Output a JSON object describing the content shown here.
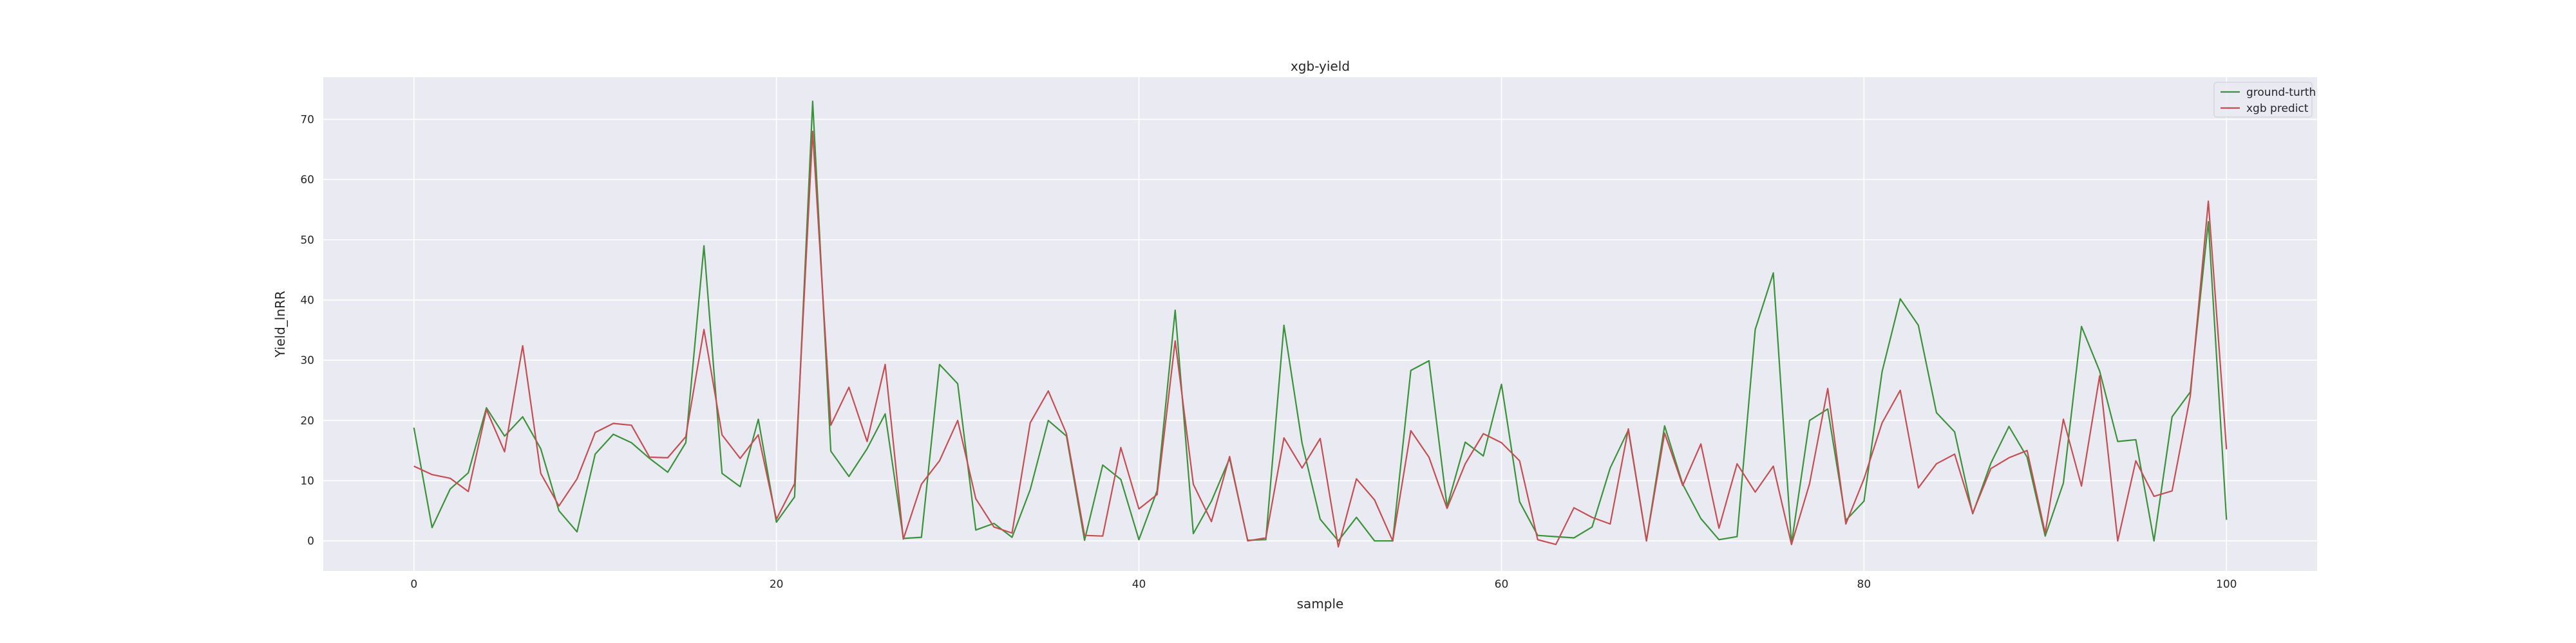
{
  "chart_data": {
    "type": "line",
    "title": "xgb-yield",
    "xlabel": "sample",
    "ylabel": "Yield_lnRR",
    "xlim": [
      -5,
      105
    ],
    "ylim": [
      -5,
      77
    ],
    "xticks": [
      0,
      20,
      40,
      60,
      80,
      100
    ],
    "yticks": [
      0,
      10,
      20,
      30,
      40,
      50,
      60,
      70
    ],
    "grid": true,
    "legend_position": "top-right",
    "x": [
      0,
      1,
      2,
      3,
      4,
      5,
      6,
      7,
      8,
      9,
      10,
      11,
      12,
      13,
      14,
      15,
      16,
      17,
      18,
      19,
      20,
      21,
      22,
      23,
      24,
      25,
      26,
      27,
      28,
      29,
      30,
      31,
      32,
      33,
      34,
      35,
      36,
      37,
      38,
      39,
      40,
      41,
      42,
      43,
      44,
      45,
      46,
      47,
      48,
      49,
      50,
      51,
      52,
      53,
      54,
      55,
      56,
      57,
      58,
      59,
      60,
      61,
      62,
      63,
      64,
      65,
      66,
      67,
      68,
      69,
      70,
      71,
      72,
      73,
      74,
      75,
      76,
      77,
      78,
      79,
      80,
      81,
      82,
      83,
      84,
      85,
      86,
      87,
      88,
      89,
      90,
      91,
      92,
      93,
      94,
      95,
      96,
      97,
      98,
      99,
      100
    ],
    "series": [
      {
        "name": "ground-turth",
        "color": "#3a923a",
        "values": [
          18.8,
          2.2,
          8.6,
          11.3,
          22.1,
          17.4,
          20.6,
          15.3,
          5.0,
          1.5,
          14.4,
          17.7,
          16.3,
          13.7,
          11.4,
          16.3,
          49.0,
          11.2,
          9.0,
          20.2,
          3.1,
          7.3,
          73.0,
          14.9,
          10.7,
          15.3,
          21.1,
          0.4,
          0.6,
          29.3,
          26.1,
          1.8,
          2.9,
          0.6,
          8.5,
          20.0,
          17.4,
          0.1,
          12.6,
          10.2,
          0.2,
          8.3,
          38.3,
          1.2,
          6.6,
          13.7,
          0.1,
          0.2,
          35.8,
          16.2,
          3.6,
          0.0,
          3.9,
          0.0,
          0.0,
          28.3,
          29.9,
          5.7,
          16.4,
          14.1,
          26.0,
          6.5,
          0.9,
          0.7,
          0.5,
          2.3,
          12.1,
          18.4,
          0.0,
          19.1,
          9.4,
          3.7,
          0.2,
          0.7,
          35.1,
          44.5,
          -0.5,
          20.0,
          21.9,
          3.4,
          6.6,
          28.1,
          40.2,
          35.8,
          21.3,
          18.1,
          4.5,
          12.9,
          19.0,
          13.9,
          0.8,
          9.6,
          35.6,
          28.2,
          16.5,
          16.8,
          0.0,
          20.6,
          24.7,
          53.0,
          3.5
        ]
      },
      {
        "name": "xgb predict",
        "color": "#c44e52",
        "values": [
          12.4,
          11.0,
          10.4,
          8.2,
          21.8,
          14.8,
          32.4,
          11.2,
          5.8,
          10.3,
          18.0,
          19.5,
          19.2,
          13.9,
          13.8,
          17.3,
          35.1,
          17.6,
          13.7,
          17.6,
          3.6,
          9.5,
          68.0,
          19.2,
          25.5,
          16.5,
          29.3,
          0.3,
          9.4,
          13.3,
          20.0,
          7.0,
          2.3,
          1.3,
          19.6,
          24.9,
          17.8,
          0.9,
          0.8,
          15.5,
          5.3,
          7.7,
          33.2,
          9.4,
          3.2,
          14.0,
          0.0,
          0.5,
          17.1,
          12.1,
          17.0,
          -1.0,
          10.3,
          6.8,
          0.0,
          18.3,
          13.9,
          5.4,
          12.8,
          17.8,
          16.3,
          13.3,
          0.2,
          -0.6,
          5.5,
          3.9,
          2.8,
          18.6,
          0.0,
          17.9,
          9.2,
          16.1,
          2.1,
          12.8,
          8.1,
          12.4,
          -0.6,
          9.5,
          25.3,
          2.8,
          10.3,
          19.6,
          25.0,
          8.8,
          12.8,
          14.4,
          4.6,
          12.0,
          13.8,
          15.0,
          1.3,
          20.2,
          9.1,
          27.4,
          0.0,
          13.3,
          7.4,
          8.3,
          24.0,
          56.4,
          15.2
        ]
      }
    ]
  }
}
